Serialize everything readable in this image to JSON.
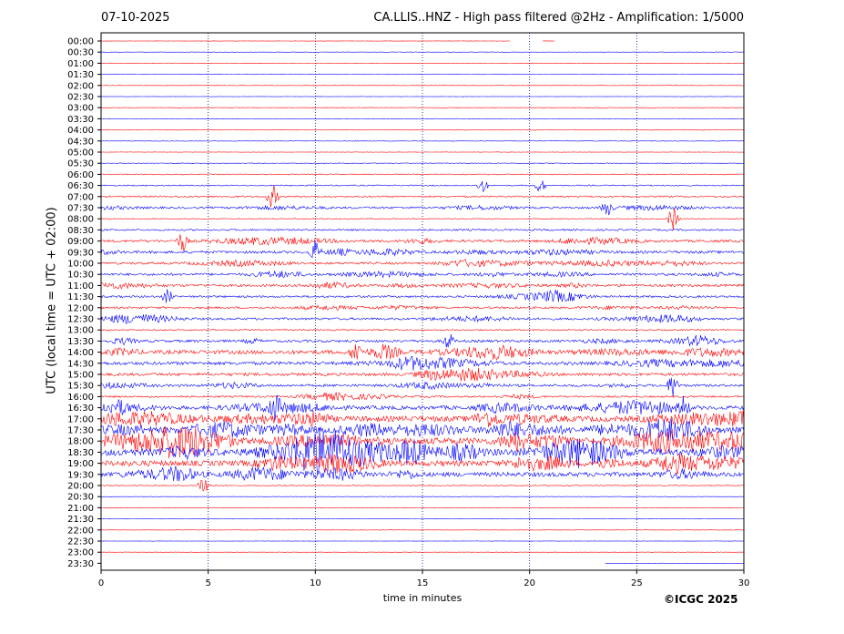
{
  "header": {
    "date": "07-10-2025",
    "title": "CA.LLIS..HNZ - High pass filtered @2Hz - Amplification: 1/5000"
  },
  "footer": {
    "copyright": "©ICGC 2025"
  },
  "colors": {
    "trace_even_hour": "#ff0000",
    "trace_half_hour": "#0000ff",
    "grid": "#000080",
    "axis": "#000000"
  },
  "chart_data": {
    "type": "line",
    "chart_kind": "seismic helicorder",
    "xlabel": "time in minutes",
    "ylabel": "UTC (local time = UTC + 02:00)",
    "xlim": [
      0,
      30
    ],
    "x_ticks": [
      "0",
      "5",
      "10",
      "15",
      "20",
      "25",
      "30"
    ],
    "grid": "vertical dotted lines at 5-minute intervals",
    "rows": [
      "00:00",
      "00:30",
      "01:00",
      "01:30",
      "02:00",
      "02:30",
      "03:00",
      "03:30",
      "04:00",
      "04:30",
      "05:00",
      "05:30",
      "06:00",
      "06:30",
      "07:00",
      "07:30",
      "08:00",
      "08:30",
      "09:00",
      "09:30",
      "10:00",
      "10:30",
      "11:00",
      "11:30",
      "12:00",
      "12:30",
      "13:00",
      "13:30",
      "14:00",
      "14:30",
      "15:00",
      "15:30",
      "16:00",
      "16:30",
      "17:00",
      "17:30",
      "18:00",
      "18:30",
      "19:00",
      "19:30",
      "20:00",
      "20:30",
      "21:00",
      "21:30",
      "22:00",
      "22:30",
      "23:00",
      "23:30"
    ],
    "noise_level": [
      0.3,
      0.3,
      0.3,
      0.3,
      0.4,
      0.3,
      0.5,
      0.4,
      0.5,
      0.5,
      0.4,
      0.6,
      0.8,
      1.0,
      1.4,
      1.8,
      0.8,
      1.5,
      2.2,
      2.4,
      2.0,
      2.2,
      2.2,
      1.8,
      1.8,
      2.0,
      1.2,
      2.2,
      3.5,
      3.0,
      2.6,
      2.2,
      1.6,
      3.5,
      5.0,
      5.5,
      6.0,
      6.5,
      5.0,
      4.0,
      0.8,
      0.3,
      0.3,
      0.3,
      0.3,
      0.3,
      0.3,
      0.3
    ],
    "events": [
      {
        "row": "06:30",
        "minute": 17.8,
        "amp": 8
      },
      {
        "row": "06:30",
        "minute": 20.5,
        "amp": 8
      },
      {
        "row": "07:00",
        "minute": 8.0,
        "amp": 14
      },
      {
        "row": "07:30",
        "minute": 23.6,
        "amp": 10
      },
      {
        "row": "08:00",
        "minute": 26.7,
        "amp": 14
      },
      {
        "row": "09:00",
        "minute": 3.8,
        "amp": 12
      },
      {
        "row": "09:30",
        "minute": 10.0,
        "amp": 12
      },
      {
        "row": "11:30",
        "minute": 3.1,
        "amp": 8
      },
      {
        "row": "13:30",
        "minute": 16.2,
        "amp": 10
      },
      {
        "row": "14:00",
        "minute": 11.9,
        "amp": 14
      },
      {
        "row": "15:30",
        "minute": 26.7,
        "amp": 14
      },
      {
        "row": "16:30",
        "minute": 27.2,
        "amp": 12
      },
      {
        "row": "16:30",
        "minute": 8.1,
        "amp": 12
      },
      {
        "row": "20:00",
        "minute": 4.8,
        "amp": 14
      }
    ],
    "gaps": [
      {
        "row": "00:00",
        "from": 19.1,
        "to": 20.6
      },
      {
        "row": "00:00",
        "from": 21.2,
        "to": 30
      },
      {
        "row": "23:30",
        "from": 0,
        "to": 23.5
      }
    ]
  }
}
